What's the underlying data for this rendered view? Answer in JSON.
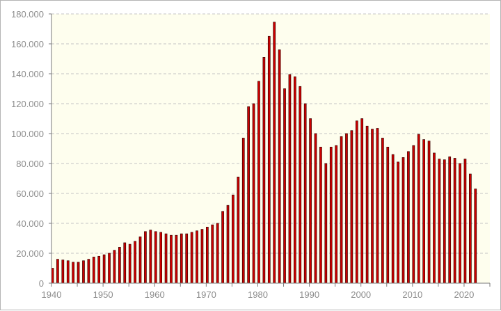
{
  "chart_data": {
    "type": "bar",
    "title": "",
    "xlabel": "",
    "ylabel": "",
    "x_start": 1940,
    "x_end": 2023,
    "xlim": [
      1940,
      2025
    ],
    "ylim": [
      0,
      180000
    ],
    "x_ticks": [
      "1940",
      "1950",
      "1960",
      "1970",
      "1980",
      "1990",
      "2000",
      "2010",
      "2020"
    ],
    "y_ticks": [
      "0",
      "20.000",
      "40.000",
      "60.000",
      "80.000",
      "100.000",
      "120.000",
      "140.000",
      "160.000",
      "180.000"
    ],
    "grid": "horizontal dashed",
    "legend": "none",
    "values": [
      10000,
      16000,
      15500,
      15000,
      14000,
      14000,
      15000,
      16000,
      17500,
      18000,
      19000,
      20000,
      22000,
      24000,
      27000,
      26000,
      28000,
      31000,
      34500,
      35500,
      34500,
      34000,
      33000,
      32000,
      32000,
      33000,
      33000,
      34000,
      35000,
      36000,
      37500,
      39000,
      40000,
      48000,
      52000,
      59000,
      71000,
      97000,
      118000,
      120000,
      135000,
      151000,
      165000,
      174500,
      156000,
      130000,
      139500,
      138000,
      131500,
      120000,
      110000,
      100000,
      91000,
      80000,
      91000,
      92000,
      98000,
      100000,
      102000,
      108500,
      110000,
      105000,
      103000,
      103500,
      97000,
      91000,
      86000,
      81000,
      84000,
      88000,
      92000,
      99500,
      96000,
      95000,
      87000,
      83000,
      82500,
      84500,
      83500,
      80000,
      83000,
      73000,
      63000,
      0
    ]
  },
  "colors": {
    "plot_background": "#fefeee",
    "bar_fill": "#cc0000",
    "bar_stroke": "#3a0000",
    "grid": "#c4c4c4",
    "axis": "#7a7a7a"
  }
}
